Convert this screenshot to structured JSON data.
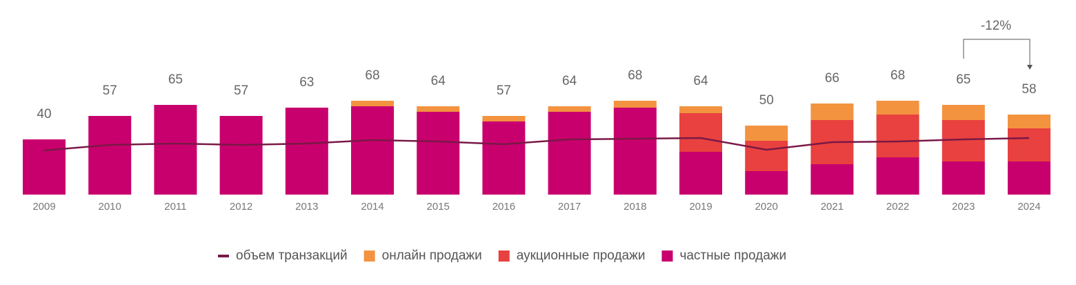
{
  "chart_data": {
    "type": "stacked-bar-line",
    "categories": [
      "2009",
      "2010",
      "2011",
      "2012",
      "2013",
      "2014",
      "2015",
      "2016",
      "2017",
      "2018",
      "2019",
      "2020",
      "2021",
      "2022",
      "2023",
      "2024"
    ],
    "totals": [
      40,
      57,
      65,
      57,
      63,
      68,
      64,
      57,
      64,
      68,
      64,
      50,
      66,
      68,
      65,
      58
    ],
    "series": [
      {
        "name": "объем транзакций",
        "kind": "line",
        "color": "#7a1846",
        "values": [
          32,
          36,
          37,
          36,
          37,
          39.5,
          38.5,
          36.5,
          40,
          40.5,
          41,
          32.5,
          38,
          38.5,
          40,
          41
        ]
      },
      {
        "name": "онлайн продажи",
        "kind": "bar",
        "color": "#f39340",
        "values": [
          0,
          0,
          0,
          0,
          0,
          4,
          4,
          4,
          4,
          5,
          5,
          11,
          12,
          10,
          11,
          10
        ]
      },
      {
        "name": "аукционные продажи",
        "kind": "bar",
        "color": "#e8413f",
        "values": [
          0,
          0,
          0,
          0,
          0,
          0,
          0,
          0,
          0,
          0,
          28,
          22,
          32,
          31,
          30,
          24
        ]
      },
      {
        "name": "частные продажи",
        "kind": "bar",
        "color": "#c8006e",
        "values": [
          40,
          57,
          65,
          57,
          63,
          64,
          60,
          53,
          60,
          63,
          31,
          17,
          22,
          27,
          24,
          24
        ]
      }
    ],
    "annotation": "-12%",
    "ylim": [
      0,
      70
    ]
  }
}
